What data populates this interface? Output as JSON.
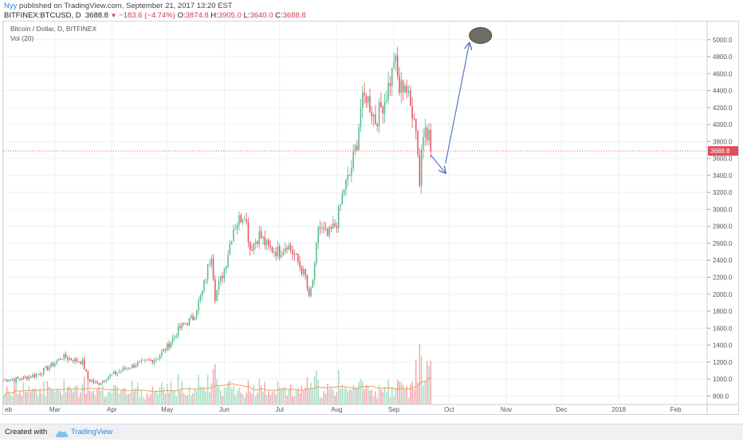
{
  "header": {
    "author": "Nyy",
    "published_text": "published on TradingView.com, September 21, 2017 13:20 EST",
    "symbol": "BITFINEX:BTCUSD, D",
    "last": "3688.8",
    "change": "−183.6 (−4.74%)",
    "open_label": "O:",
    "open": "3874.8",
    "high_label": "H:",
    "high": "3905.0",
    "low_label": "L:",
    "low": "3640.0",
    "close_label": "C:",
    "close": "3688.8"
  },
  "legend": {
    "series_title": "Bitcoin / Dollar, D, BITFINEX",
    "volume_title": "Vol (20)"
  },
  "footer": {
    "created_with": "Created with",
    "brand": "TradingView"
  },
  "colors": {
    "up": "#53b987",
    "down": "#eb4d5c",
    "vol_up": "#a9dcc3",
    "vol_down": "#f5a6ae",
    "vol_ma": "#f0a05a",
    "price_line": "#e65c6b",
    "price_label_bg": "#e04d5c",
    "arrow": "#5b77c6",
    "ellipse": "#6e6e64",
    "grid": "#eef1f4"
  },
  "chart_data": {
    "type": "candlestick",
    "title": "Bitcoin / Dollar, D, BITFINEX",
    "x_ticks": [
      "eb",
      "Mar",
      "Apr",
      "May",
      "Jun",
      "Jul",
      "Aug",
      "Sep",
      "Oct",
      "Nov",
      "Dec",
      "2018",
      "Feb"
    ],
    "y_ticks": [
      800,
      1000,
      1200,
      1400,
      1600,
      1800,
      2000,
      2200,
      2400,
      2600,
      2800,
      3000,
      3200,
      3400,
      3600,
      3800,
      4000,
      4200,
      4400,
      4600,
      4800,
      5000
    ],
    "y_tick_labels": [
      "800.0",
      "1000.0",
      "1200.0",
      "1400.0",
      "1600.0",
      "1800.0",
      "2000.0",
      "2200.0",
      "2400.0",
      "2600.0",
      "2800.0",
      "3000.0",
      "3200.0",
      "3400.0",
      "3600.0",
      "3800.0",
      "4000.0",
      "4200.0",
      "4400.0",
      "4600.0",
      "4800.0",
      "5000.0"
    ],
    "ylim": [
      700,
      5120
    ],
    "x_range": [
      "2017-02-01",
      "2018-02-18"
    ],
    "last_price": 3688.8,
    "last_price_label": "3688.8",
    "price_path": [
      [
        "2017-02-01",
        990
      ],
      [
        "2017-02-10",
        1000
      ],
      [
        "2017-02-20",
        1060
      ],
      [
        "2017-03-01",
        1190
      ],
      [
        "2017-03-05",
        1260
      ],
      [
        "2017-03-10",
        1240
      ],
      [
        "2017-03-16",
        1200
      ],
      [
        "2017-03-19",
        1000
      ],
      [
        "2017-03-24",
        940
      ],
      [
        "2017-03-30",
        1030
      ],
      [
        "2017-04-05",
        1090
      ],
      [
        "2017-04-15",
        1180
      ],
      [
        "2017-04-25",
        1240
      ],
      [
        "2017-05-01",
        1380
      ],
      [
        "2017-05-08",
        1610
      ],
      [
        "2017-05-15",
        1720
      ],
      [
        "2017-05-20",
        2020
      ],
      [
        "2017-05-25",
        2490
      ],
      [
        "2017-05-27",
        1980
      ],
      [
        "2017-06-01",
        2300
      ],
      [
        "2017-06-06",
        2790
      ],
      [
        "2017-06-12",
        2970
      ],
      [
        "2017-06-15",
        2540
      ],
      [
        "2017-06-20",
        2700
      ],
      [
        "2017-06-25",
        2540
      ],
      [
        "2017-07-01",
        2500
      ],
      [
        "2017-07-05",
        2600
      ],
      [
        "2017-07-10",
        2420
      ],
      [
        "2017-07-15",
        2200
      ],
      [
        "2017-07-17",
        1930
      ],
      [
        "2017-07-20",
        2300
      ],
      [
        "2017-07-22",
        2800
      ],
      [
        "2017-07-27",
        2680
      ],
      [
        "2017-08-01",
        2850
      ],
      [
        "2017-08-05",
        3250
      ],
      [
        "2017-08-08",
        3400
      ],
      [
        "2017-08-12",
        3800
      ],
      [
        "2017-08-14",
        4200
      ],
      [
        "2017-08-17",
        4350
      ],
      [
        "2017-08-22",
        4050
      ],
      [
        "2017-08-27",
        4300
      ],
      [
        "2017-08-31",
        4600
      ],
      [
        "2017-09-01",
        4800
      ],
      [
        "2017-09-02",
        4700
      ],
      [
        "2017-09-04",
        4400
      ],
      [
        "2017-09-07",
        4500
      ],
      [
        "2017-09-10",
        4200
      ],
      [
        "2017-09-12",
        4150
      ],
      [
        "2017-09-14",
        3700
      ],
      [
        "2017-09-15",
        3300
      ],
      [
        "2017-09-16",
        3700
      ],
      [
        "2017-09-18",
        4080
      ],
      [
        "2017-09-19",
        3920
      ],
      [
        "2017-09-20",
        3880
      ],
      [
        "2017-09-21",
        3689
      ]
    ],
    "series": [
      {
        "name": "Vol (20)",
        "type": "volume",
        "values_relative": "shown as bars at bottom with a moving-average line"
      }
    ],
    "annotations": [
      {
        "type": "arrow",
        "from": [
          "2017-09-21",
          3640
        ],
        "to": [
          "2017-09-29",
          3430
        ]
      },
      {
        "type": "arrow",
        "from": [
          "2017-09-29",
          3540
        ],
        "to": [
          "2017-10-12",
          4960
        ]
      },
      {
        "type": "ellipse",
        "center": [
          "2017-10-18",
          5050
        ]
      }
    ]
  }
}
